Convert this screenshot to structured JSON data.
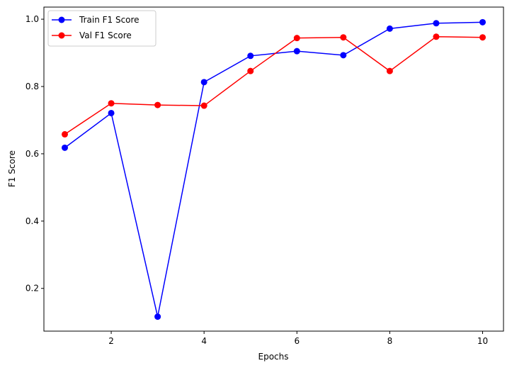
{
  "chart_data": {
    "type": "line",
    "xlabel": "Epochs",
    "ylabel": "F1 Score",
    "x": [
      1,
      2,
      3,
      4,
      5,
      6,
      7,
      8,
      9,
      10
    ],
    "xlim": [
      0.55,
      10.45
    ],
    "ylim": [
      0.073,
      1.036
    ],
    "xticks": [
      2,
      4,
      6,
      8,
      10
    ],
    "yticks": [
      0.2,
      0.4,
      0.6,
      0.8,
      1.0
    ],
    "grid": false,
    "legend_position": "top-left",
    "series": [
      {
        "name": "Train F1 Score",
        "color": "#0000ff",
        "marker": "circle",
        "values": [
          0.618,
          0.721,
          0.116,
          0.813,
          0.891,
          0.905,
          0.893,
          0.972,
          0.988,
          0.991
        ]
      },
      {
        "name": "Val F1 Score",
        "color": "#ff0000",
        "marker": "circle",
        "values": [
          0.658,
          0.75,
          0.745,
          0.743,
          0.846,
          0.944,
          0.946,
          0.846,
          0.948,
          0.946
        ]
      }
    ]
  }
}
